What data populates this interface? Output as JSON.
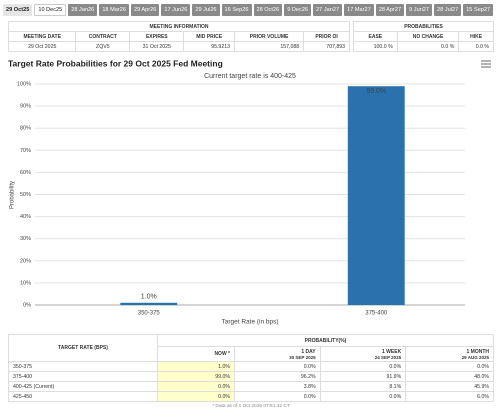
{
  "tabs": [
    "29 Oct25",
    "10 Dec25",
    "28 Jan26",
    "18 Mar26",
    "29 Apr26",
    "17 Jun26",
    "29 Jul26",
    "16 Sep26",
    "28 Oct26",
    "9 Dec26",
    "27 Jan27",
    "17 Mar27",
    "28 Apr27",
    "9 Jun27",
    "28 Jul27",
    "15 Sep27"
  ],
  "meeting_table": {
    "title": "MEETING INFORMATION",
    "columns": [
      "MEETING DATE",
      "CONTRACT",
      "EXPIRES",
      "MID PRICE",
      "PRIOR VOLUME",
      "PRIOR OI"
    ],
    "row": [
      "29 Oct 2025",
      "ZQV5",
      "31 Oct 2025",
      "95.9213",
      "157,088",
      "707,893"
    ]
  },
  "probabilities_table": {
    "title": "PROBABILITIES",
    "columns": [
      "EASE",
      "NO CHANGE",
      "HIKE"
    ],
    "row": [
      "100.0 %",
      "0.0 %",
      "0.0 %"
    ]
  },
  "chart_data": {
    "type": "bar",
    "title": "Target Rate Probabilities for 29 Oct 2025 Fed Meeting",
    "subtitle": "Current target rate is 400-425",
    "x_label": "Target Rate (in bps)",
    "y_label": "Probability",
    "categories": [
      "350-375",
      "375-400"
    ],
    "values": [
      1.0,
      99.0
    ],
    "value_labels": [
      "1.0%",
      "99.0%"
    ],
    "color": "#2a72ad",
    "ylim": [
      0,
      100
    ],
    "yticks": [
      {
        "value": 0,
        "label": "0%"
      },
      {
        "value": 10,
        "label": "10%"
      },
      {
        "value": 20,
        "label": "20%"
      },
      {
        "value": 30,
        "label": "30%"
      },
      {
        "value": 40,
        "label": "40%"
      },
      {
        "value": 50,
        "label": "50%"
      },
      {
        "value": 60,
        "label": "60%"
      },
      {
        "value": 70,
        "label": "70%"
      },
      {
        "value": 80,
        "label": "80%"
      },
      {
        "value": 90,
        "label": "90%"
      },
      {
        "value": 100,
        "label": "100%"
      }
    ],
    "grid": true
  },
  "bottom_table": {
    "first_header": "TARGET RATE (BPS)",
    "group_header": "PROBABILITY(%)",
    "columns": [
      [
        "NOW *"
      ],
      [
        "1 DAY",
        "30 SEP 2025"
      ],
      [
        "1 WEEK",
        "24 SEP 2025"
      ],
      [
        "1 MONTH",
        "29 AUG 2025"
      ]
    ],
    "rows": [
      [
        "350-375",
        "1.0%",
        "0.0%",
        "0.0%",
        "0.0%"
      ],
      [
        "375-400",
        "99.0%",
        "96.2%",
        "91.9%",
        "48.0%"
      ],
      [
        "400-425 (Current)",
        "0.0%",
        "3.8%",
        "8.1%",
        "45.9%"
      ],
      [
        "425-450",
        "0.0%",
        "0.0%",
        "0.0%",
        "6.0%"
      ]
    ],
    "footnote": "* Data as of 1 Oct 2025 07:51:32 CT"
  }
}
